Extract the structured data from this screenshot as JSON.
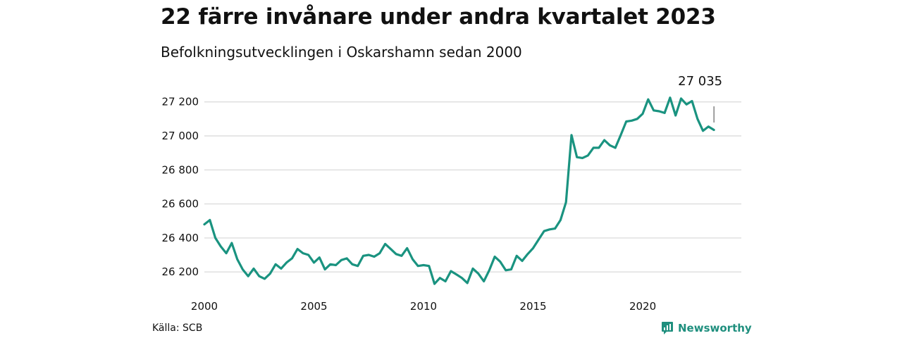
{
  "title": "22 färre invånare under andra kvartalet 2023",
  "subtitle": "Befolkningsutvecklingen i Oskarshamn sedan 2000",
  "source": "Källa: SCB",
  "brand": "Newsworthy",
  "colors": {
    "line": "#1a9380",
    "grid": "#dddddd",
    "brand": "#1f8f7e"
  },
  "icons": {
    "brand_logo": "bar-chart-speech-bubble-icon"
  },
  "chart_data": {
    "type": "line",
    "title": "22 färre invånare under andra kvartalet 2023",
    "subtitle": "Befolkningsutvecklingen i Oskarshamn sedan 2000",
    "xlabel": "",
    "ylabel": "",
    "grid": true,
    "xlim": [
      "2000-Q1",
      "2023-Q2"
    ],
    "ylim": [
      26100,
      27300
    ],
    "x_ticks": [
      {
        "value": 2000,
        "label": "2000"
      },
      {
        "value": 2005,
        "label": "2005"
      },
      {
        "value": 2010,
        "label": "2010"
      },
      {
        "value": 2015,
        "label": "2015"
      },
      {
        "value": 2020,
        "label": "2020"
      }
    ],
    "y_ticks": [
      {
        "value": 26200,
        "label": "26 200"
      },
      {
        "value": 26400,
        "label": "26 400"
      },
      {
        "value": 26600,
        "label": "26 600"
      },
      {
        "value": 26800,
        "label": "26 800"
      },
      {
        "value": 27000,
        "label": "27 000"
      },
      {
        "value": 27200,
        "label": "27 200"
      }
    ],
    "end_label": {
      "text": "27 035",
      "x": "2023-Q2"
    },
    "x": [
      "2000-Q1",
      "2000-Q2",
      "2000-Q3",
      "2000-Q4",
      "2001-Q1",
      "2001-Q2",
      "2001-Q3",
      "2001-Q4",
      "2002-Q1",
      "2002-Q2",
      "2002-Q3",
      "2002-Q4",
      "2003-Q1",
      "2003-Q2",
      "2003-Q3",
      "2003-Q4",
      "2004-Q1",
      "2004-Q2",
      "2004-Q3",
      "2004-Q4",
      "2005-Q1",
      "2005-Q2",
      "2005-Q3",
      "2005-Q4",
      "2006-Q1",
      "2006-Q2",
      "2006-Q3",
      "2006-Q4",
      "2007-Q1",
      "2007-Q2",
      "2007-Q3",
      "2007-Q4",
      "2008-Q1",
      "2008-Q2",
      "2008-Q3",
      "2008-Q4",
      "2009-Q1",
      "2009-Q2",
      "2009-Q3",
      "2009-Q4",
      "2010-Q1",
      "2010-Q2",
      "2010-Q3",
      "2010-Q4",
      "2011-Q1",
      "2011-Q2",
      "2011-Q3",
      "2011-Q4",
      "2012-Q1",
      "2012-Q2",
      "2012-Q3",
      "2012-Q4",
      "2013-Q1",
      "2013-Q2",
      "2013-Q3",
      "2013-Q4",
      "2014-Q1",
      "2014-Q2",
      "2014-Q3",
      "2014-Q4",
      "2015-Q1",
      "2015-Q2",
      "2015-Q3",
      "2015-Q4",
      "2016-Q1",
      "2016-Q2",
      "2016-Q3",
      "2016-Q4",
      "2017-Q1",
      "2017-Q2",
      "2017-Q3",
      "2017-Q4",
      "2018-Q1",
      "2018-Q2",
      "2018-Q3",
      "2018-Q4",
      "2019-Q1",
      "2019-Q2",
      "2019-Q3",
      "2019-Q4",
      "2020-Q1",
      "2020-Q2",
      "2020-Q3",
      "2020-Q4",
      "2021-Q1",
      "2021-Q2",
      "2021-Q3",
      "2021-Q4",
      "2022-Q1",
      "2022-Q2",
      "2022-Q3",
      "2022-Q4",
      "2023-Q1",
      "2023-Q2"
    ],
    "series": [
      {
        "values": [
          26480,
          26505,
          26400,
          26350,
          26310,
          26370,
          26275,
          26215,
          26175,
          26220,
          26175,
          26160,
          26190,
          26245,
          26220,
          26255,
          26280,
          26335,
          26310,
          26300,
          26255,
          26285,
          26215,
          26245,
          26240,
          26270,
          26280,
          26245,
          26235,
          26295,
          26300,
          26290,
          26310,
          26365,
          26335,
          26305,
          26295,
          26340,
          26275,
          26235,
          26240,
          26235,
          26130,
          26165,
          26145,
          26205,
          26185,
          26165,
          26135,
          26220,
          26190,
          26145,
          26210,
          26290,
          26260,
          26210,
          26215,
          26295,
          26265,
          26305,
          26340,
          26390,
          26440,
          26450,
          26455,
          26505,
          26610,
          27005,
          26875,
          26870,
          26885,
          26930,
          26930,
          26975,
          26945,
          26930,
          27005,
          27085,
          27090,
          27100,
          27130,
          27215,
          27150,
          27145,
          27135,
          27225,
          27120,
          27220,
          27185,
          27205,
          27100,
          27030,
          27055,
          27035
        ]
      }
    ]
  }
}
